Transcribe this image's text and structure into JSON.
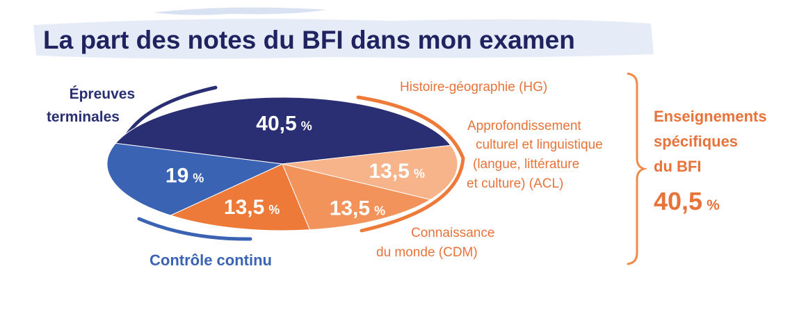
{
  "title": "La part des notes du BFI dans mon examen",
  "colors": {
    "title": "#1f2360",
    "title_bg": "#e6ecf7",
    "navy": "#2a2e73",
    "blue": "#3b63b4",
    "orange": "#ee7a3a",
    "orange_text": "#e8733a",
    "bracket": "#ef8a4a"
  },
  "chart_data": {
    "type": "pie",
    "unit": "%",
    "slices": [
      {
        "label": "Épreuves terminales",
        "value": 40.5,
        "display": "40,5",
        "color": "#2a2e73",
        "text_color": "#ffffff"
      },
      {
        "label": "Histoire-géographie (HG)",
        "value": 13.5,
        "display": "13,5",
        "color": "#f7b48a",
        "text_color": "#ffffff"
      },
      {
        "label": "Approfondissement culturel et linguistique (langue, littérature et culture) (ACL)",
        "value": 13.5,
        "display": "13,5",
        "color": "#f2935b",
        "text_color": "#ffffff"
      },
      {
        "label": "Connaissance du monde (CDM)",
        "value": 13.5,
        "display": "13,5",
        "color": "#ee7a3a",
        "text_color": "#ffffff"
      },
      {
        "label": "Contrôle continu",
        "value": 19,
        "display": "19",
        "color": "#3b63b4",
        "text_color": "#ffffff"
      }
    ],
    "legend_labels": {
      "epreuves": [
        "Épreuves",
        "terminales"
      ],
      "controle": "Contrôle continu",
      "hg": "Histoire-géographie (HG)",
      "acl": [
        "Approfondissement",
        "culturel et linguistique",
        "(langue, littérature",
        "et culture) (ACL)"
      ],
      "cdm": [
        "Connaissance",
        "du monde (CDM)"
      ]
    },
    "group": {
      "label": [
        "Enseignements",
        "spécifiques",
        "du BFI"
      ],
      "value": 40.5,
      "display": "40,5"
    }
  }
}
